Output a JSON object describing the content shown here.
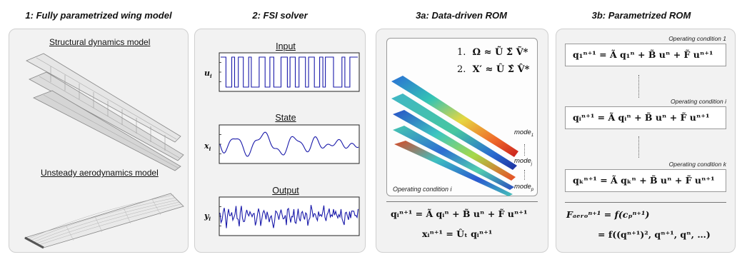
{
  "panels": {
    "p1": {
      "title": "1: Fully parametrized wing model",
      "structural": "Structural dynamics model",
      "aero": "Unsteady aerodynamics model"
    },
    "p2": {
      "title": "2: FSI solver",
      "input": "Input",
      "state": "State",
      "output": "Output",
      "u": "u",
      "x": "x",
      "y": "y",
      "sub": "i"
    },
    "p3": {
      "title": "3a: Data-driven ROM",
      "eq1_num": "1.",
      "eq1": "Ω ≈ Ũ Σ̃ Ṽ*",
      "eq2_num": "2.",
      "eq2": "X′ ≈ Û Σ̂ V̂*",
      "mode1": "mode",
      "mode1_sub": "1",
      "modej": "mode",
      "modej_sub": "j",
      "modep": "mode",
      "modep_sub": "p",
      "opcond": "Operating condition i",
      "rom_eq": "qᵢⁿ⁺¹ = Ã qᵢⁿ + B̃ uⁿ + F̃ uⁿ⁺¹",
      "out_eq": "xᵢⁿ⁺¹ = Ûₜ qᵢⁿ⁺¹"
    },
    "p4": {
      "title": "3b: Parametrized ROM",
      "oc1": "Operating condition 1",
      "oci": "Operating condition i",
      "ock": "Operating condition k",
      "eq1": "q₁ⁿ⁺¹ = Ã q₁ⁿ + B̃ uⁿ + F̃ uⁿ⁺¹",
      "eqi": "qᵢⁿ⁺¹ = Ã qᵢⁿ + B̃ uⁿ + F̃ uⁿ⁺¹",
      "eqk": "qₖⁿ⁺¹ = Ã qₖⁿ + B̃ uⁿ + F̃ uⁿ⁺¹",
      "faero1": "Fₐₑᵣₒⁿ⁺¹ = f(cₚⁿ⁺¹)",
      "faero2": "= f((qⁿ⁺¹)², qⁿ⁺¹, qⁿ, …)"
    }
  },
  "colors": {
    "signal": "#1a1aaa",
    "panel_bg": "#f2f2f2",
    "border": "#cfcfcf"
  }
}
